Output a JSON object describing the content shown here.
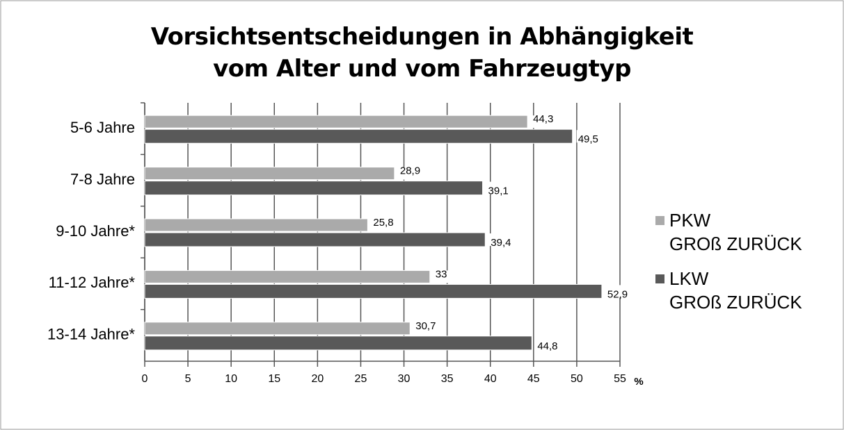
{
  "chart_data": {
    "type": "bar",
    "orientation": "horizontal",
    "title": "Vorsichtsentscheidungen in Abhängigkeit\nvom Alter und vom Fahrzeugtyp",
    "categories": [
      "5-6 Jahre",
      "7-8 Jahre",
      "9-10 Jahre*",
      "11-12 Jahre*",
      "13-14 Jahre*"
    ],
    "series": [
      {
        "name": "PKW\nGROß ZURÜCK",
        "color": "#aaaaaa",
        "values": [
          44.3,
          28.9,
          25.8,
          33,
          30.7
        ],
        "value_labels": [
          "44,3",
          "28,9",
          "25,8",
          "33",
          "30,7"
        ]
      },
      {
        "name": "LKW\nGROß ZURÜCK",
        "color": "#595959",
        "values": [
          49.5,
          39.1,
          39.4,
          52.9,
          44.8
        ],
        "value_labels": [
          "49,5",
          "39,1",
          "39,4",
          "52,9",
          "44,8"
        ]
      }
    ],
    "xlabel": "%",
    "xlim": [
      0,
      55
    ],
    "xticks": [
      0,
      5,
      10,
      15,
      20,
      25,
      30,
      35,
      40,
      45,
      50,
      55
    ],
    "grid": true,
    "legend": "right"
  }
}
